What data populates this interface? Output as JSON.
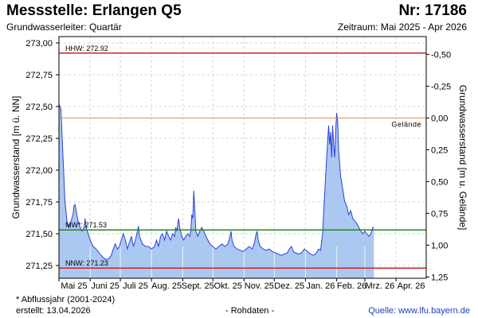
{
  "header": {
    "title": "Messstelle: Erlangen Q5",
    "number": "Nr: 17186",
    "aquifer": "Grundwasserleiter: Quartär",
    "period": "Zeitraum: Mai 2025 - Apr 2026"
  },
  "footer": {
    "footnote": "* Abflussjahr (2001-2024)",
    "created": "erstellt:  13.04.2026",
    "raw": "- Rohdaten -",
    "source": "Quelle: www.lfu.bayern.de"
  },
  "chart_data": {
    "type": "area",
    "ylabel": "Grundwasserstand [m ü. NN]",
    "y2label": "Grundwasserstand [m u. Gelände]",
    "ylim": [
      271.15,
      273.05
    ],
    "yticks": [
      273.0,
      272.75,
      272.5,
      272.25,
      272.0,
      271.75,
      271.5,
      271.25
    ],
    "ytick_labels": [
      "273,00",
      "272,75",
      "272,50",
      "272,25",
      "272,00",
      "271,75",
      "271,50",
      "271,25"
    ],
    "y2_ground_level": 272.41,
    "y2ticks": [
      -0.5,
      -0.25,
      0.0,
      0.25,
      0.5,
      0.75,
      1.0,
      1.25
    ],
    "y2tick_labels": [
      "-0,50",
      "-0,25",
      "0,00",
      "0,25",
      "0,50",
      "0,75",
      "1,00",
      "1,25"
    ],
    "xlim": [
      0,
      365
    ],
    "month_labels": [
      "Mai 25",
      "Juni 25",
      "Juli 25",
      "Aug. 25",
      "Sept. 25",
      "Okt. 25",
      "Nov. 25",
      "Dez. 25",
      "Jan. 26",
      "Feb. 26",
      "Mrz. 26",
      "Apr. 26"
    ],
    "month_positions": [
      0,
      31,
      61,
      92,
      123,
      153,
      184,
      214,
      245,
      276,
      304,
      335
    ],
    "reference_lines": [
      {
        "label": "HHW: 272.92",
        "value": 272.92,
        "color": "#d42020"
      },
      {
        "label": "Gelände",
        "value": 272.41,
        "color": "#f08a3c"
      },
      {
        "label": "MW*: 271.53",
        "value": 271.53,
        "color": "#1e8c1e"
      },
      {
        "label": "NNW: 271.23",
        "value": 271.23,
        "color": "#d42020"
      }
    ],
    "series": [
      {
        "color": "#2d3fd8",
        "fill": "#aac8f0",
        "points": [
          [
            0,
            272.52
          ],
          [
            2,
            272.48
          ],
          [
            4,
            272.1
          ],
          [
            6,
            271.75
          ],
          [
            8,
            271.6
          ],
          [
            10,
            271.55
          ],
          [
            12,
            271.6
          ],
          [
            14,
            271.65
          ],
          [
            15,
            271.72
          ],
          [
            16,
            271.73
          ],
          [
            17,
            271.68
          ],
          [
            19,
            271.6
          ],
          [
            21,
            271.55
          ],
          [
            23,
            271.52
          ],
          [
            25,
            271.55
          ],
          [
            26,
            271.62
          ],
          [
            27,
            271.55
          ],
          [
            29,
            271.5
          ],
          [
            31,
            271.45
          ],
          [
            34,
            271.4
          ],
          [
            37,
            271.38
          ],
          [
            40,
            271.35
          ],
          [
            43,
            271.32
          ],
          [
            46,
            271.3
          ],
          [
            49,
            271.3
          ],
          [
            52,
            271.33
          ],
          [
            54,
            271.38
          ],
          [
            56,
            271.42
          ],
          [
            58,
            271.38
          ],
          [
            60,
            271.4
          ],
          [
            62,
            271.45
          ],
          [
            64,
            271.5
          ],
          [
            66,
            271.45
          ],
          [
            68,
            271.38
          ],
          [
            70,
            271.43
          ],
          [
            72,
            271.48
          ],
          [
            74,
            271.4
          ],
          [
            76,
            271.45
          ],
          [
            78,
            271.52
          ],
          [
            79,
            271.56
          ],
          [
            80,
            271.48
          ],
          [
            83,
            271.42
          ],
          [
            86,
            271.4
          ],
          [
            89,
            271.4
          ],
          [
            92,
            271.38
          ],
          [
            95,
            271.4
          ],
          [
            97,
            271.45
          ],
          [
            99,
            271.4
          ],
          [
            101,
            271.48
          ],
          [
            103,
            271.5
          ],
          [
            105,
            271.45
          ],
          [
            107,
            271.52
          ],
          [
            109,
            271.48
          ],
          [
            111,
            271.45
          ],
          [
            113,
            271.5
          ],
          [
            115,
            271.48
          ],
          [
            116,
            271.55
          ],
          [
            117,
            271.52
          ],
          [
            119,
            271.62
          ],
          [
            120,
            271.55
          ],
          [
            122,
            271.48
          ],
          [
            124,
            271.45
          ],
          [
            126,
            271.48
          ],
          [
            128,
            271.5
          ],
          [
            130,
            271.48
          ],
          [
            131,
            271.52
          ],
          [
            132,
            271.65
          ],
          [
            133,
            271.62
          ],
          [
            134,
            271.84
          ],
          [
            135,
            271.7
          ],
          [
            136,
            271.52
          ],
          [
            138,
            271.48
          ],
          [
            140,
            271.52
          ],
          [
            142,
            271.55
          ],
          [
            144,
            271.52
          ],
          [
            146,
            271.48
          ],
          [
            148,
            271.45
          ],
          [
            150,
            271.42
          ],
          [
            153,
            271.4
          ],
          [
            156,
            271.38
          ],
          [
            159,
            271.4
          ],
          [
            162,
            271.42
          ],
          [
            165,
            271.4
          ],
          [
            168,
            271.42
          ],
          [
            170,
            271.48
          ],
          [
            171,
            271.52
          ],
          [
            172,
            271.45
          ],
          [
            174,
            271.4
          ],
          [
            177,
            271.38
          ],
          [
            180,
            271.37
          ],
          [
            183,
            271.36
          ],
          [
            186,
            271.38
          ],
          [
            189,
            271.4
          ],
          [
            192,
            271.38
          ],
          [
            194,
            271.42
          ],
          [
            196,
            271.5
          ],
          [
            197,
            271.52
          ],
          [
            198,
            271.45
          ],
          [
            200,
            271.4
          ],
          [
            203,
            271.38
          ],
          [
            206,
            271.37
          ],
          [
            209,
            271.38
          ],
          [
            212,
            271.36
          ],
          [
            215,
            271.35
          ],
          [
            218,
            271.34
          ],
          [
            221,
            271.33
          ],
          [
            224,
            271.34
          ],
          [
            227,
            271.35
          ],
          [
            229,
            271.38
          ],
          [
            231,
            271.4
          ],
          [
            233,
            271.36
          ],
          [
            235,
            271.35
          ],
          [
            238,
            271.34
          ],
          [
            241,
            271.35
          ],
          [
            244,
            271.38
          ],
          [
            247,
            271.36
          ],
          [
            250,
            271.34
          ],
          [
            253,
            271.33
          ],
          [
            256,
            271.35
          ],
          [
            258,
            271.38
          ],
          [
            260,
            271.37
          ],
          [
            262,
            271.5
          ],
          [
            264,
            271.8
          ],
          [
            266,
            272.1
          ],
          [
            268,
            272.35
          ],
          [
            269,
            272.2
          ],
          [
            270,
            272.3
          ],
          [
            271,
            272.1
          ],
          [
            272,
            272.35
          ],
          [
            273,
            272.2
          ],
          [
            274,
            272.1
          ],
          [
            275,
            272.3
          ],
          [
            276,
            272.45
          ],
          [
            277,
            272.38
          ],
          [
            278,
            272.15
          ],
          [
            280,
            271.95
          ],
          [
            282,
            271.85
          ],
          [
            284,
            271.75
          ],
          [
            286,
            271.72
          ],
          [
            288,
            271.65
          ],
          [
            290,
            271.68
          ],
          [
            292,
            271.62
          ],
          [
            294,
            271.6
          ],
          [
            296,
            271.58
          ],
          [
            298,
            271.55
          ],
          [
            300,
            271.52
          ],
          [
            302,
            271.5
          ],
          [
            304,
            271.52
          ],
          [
            306,
            271.5
          ],
          [
            308,
            271.48
          ],
          [
            310,
            271.5
          ],
          [
            312,
            271.55
          ],
          [
            313,
            271.55
          ]
        ]
      }
    ],
    "grid": true
  }
}
